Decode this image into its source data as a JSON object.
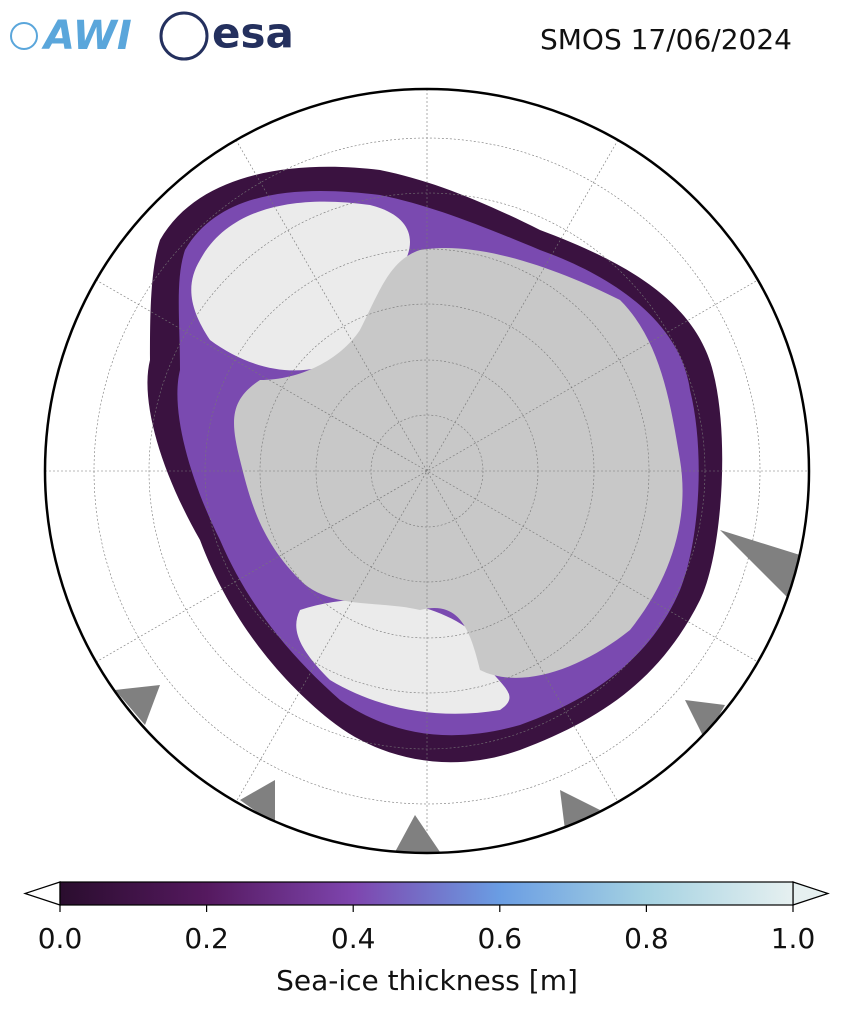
{
  "header": {
    "logos": [
      "AWI",
      "esa"
    ],
    "title": "SMOS 17/06/2024"
  },
  "colorbar": {
    "label": "Sea-ice thickness [m]",
    "xlim": [
      0,
      1
    ],
    "xticks": [
      {
        "value": 0,
        "label": "0.0"
      },
      0.2,
      0.4,
      0.6,
      0.8,
      {
        "value": 1,
        "label": "1.0"
      }
    ]
  }
}
